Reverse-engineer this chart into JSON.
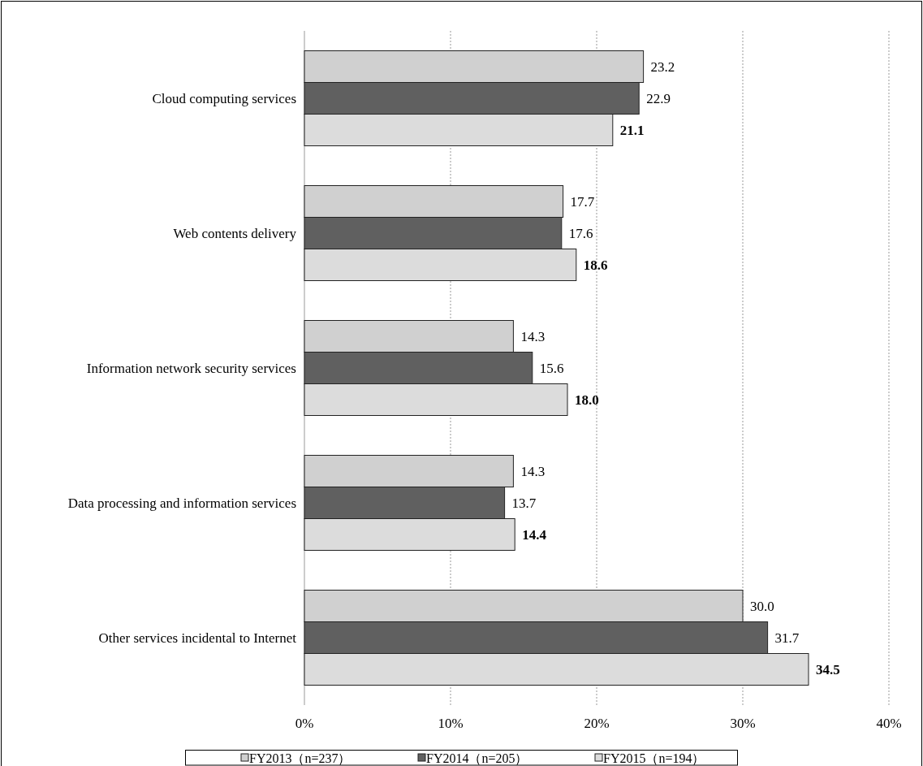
{
  "chart_data": {
    "type": "bar",
    "orientation": "horizontal",
    "categories": [
      "Cloud computing services",
      "Web contents delivery",
      "Information network security services",
      "Data processing and information services",
      "Other services incidental to Internet"
    ],
    "series": [
      {
        "name": "FY2013（n=237）",
        "color": "#d0d0d0",
        "values": [
          23.2,
          17.7,
          14.3,
          14.3,
          30.0
        ],
        "value_labels": [
          "23.2",
          "17.7",
          "14.3",
          "14.3",
          "30.0"
        ]
      },
      {
        "name": "FY2014（n=205）",
        "color": "#606060",
        "values": [
          22.9,
          17.6,
          15.6,
          13.7,
          31.7
        ],
        "value_labels": [
          "22.9",
          "17.6",
          "15.6",
          "13.7",
          "31.7"
        ]
      },
      {
        "name": "FY2015（n=194）",
        "color": "#dcdcdc",
        "values": [
          21.1,
          18.6,
          18.0,
          14.4,
          34.5
        ],
        "value_labels": [
          "21.1",
          "18.6",
          "18.0",
          "14.4",
          "34.5"
        ]
      }
    ],
    "xlim": [
      0,
      40
    ],
    "xticks": [
      {
        "value": 0,
        "label": "0%"
      },
      {
        "value": 10,
        "label": "10%"
      },
      {
        "value": 20,
        "label": "20%"
      },
      {
        "value": 30,
        "label": "30%"
      },
      {
        "value": 40,
        "label": "40%"
      }
    ],
    "grid": "x",
    "legend": "bottom"
  }
}
